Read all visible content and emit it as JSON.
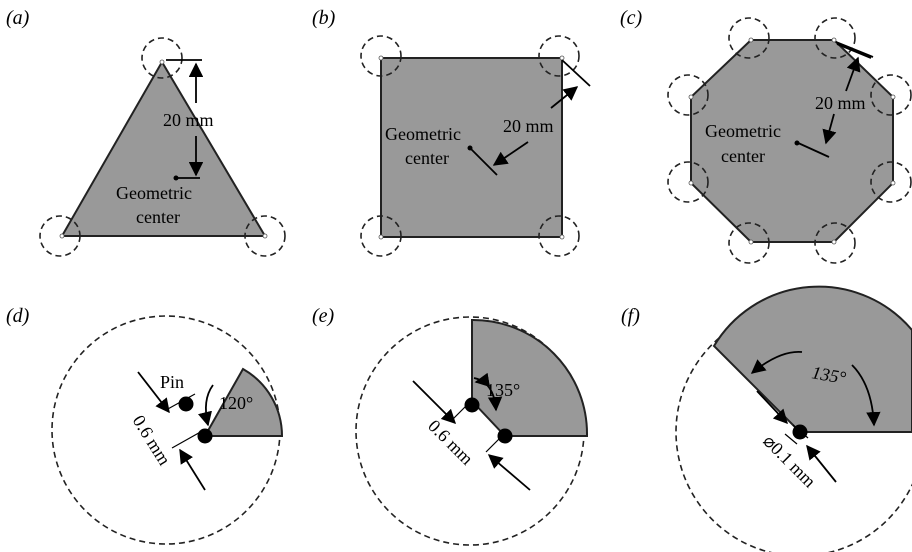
{
  "panels": {
    "a": {
      "label": "(a)",
      "dim": "20 mm",
      "center_l1": "Geometric",
      "center_l2": "center"
    },
    "b": {
      "label": "(b)",
      "dim": "20 mm",
      "center_l1": "Geometric",
      "center_l2": "center"
    },
    "c": {
      "label": "(c)",
      "dim": "20 mm",
      "center_l1": "Geometric",
      "center_l2": "center"
    },
    "d": {
      "label": "(d)",
      "pin": "Pin",
      "angle": "120°",
      "gap": "0.6 mm"
    },
    "e": {
      "label": "(e)",
      "angle": "135°",
      "gap": "0.6 mm"
    },
    "f": {
      "label": "(f)",
      "angle": "135°",
      "diameter": "⌀0.1 mm"
    }
  },
  "colors": {
    "fill": "#999999",
    "stroke": "#222222"
  }
}
